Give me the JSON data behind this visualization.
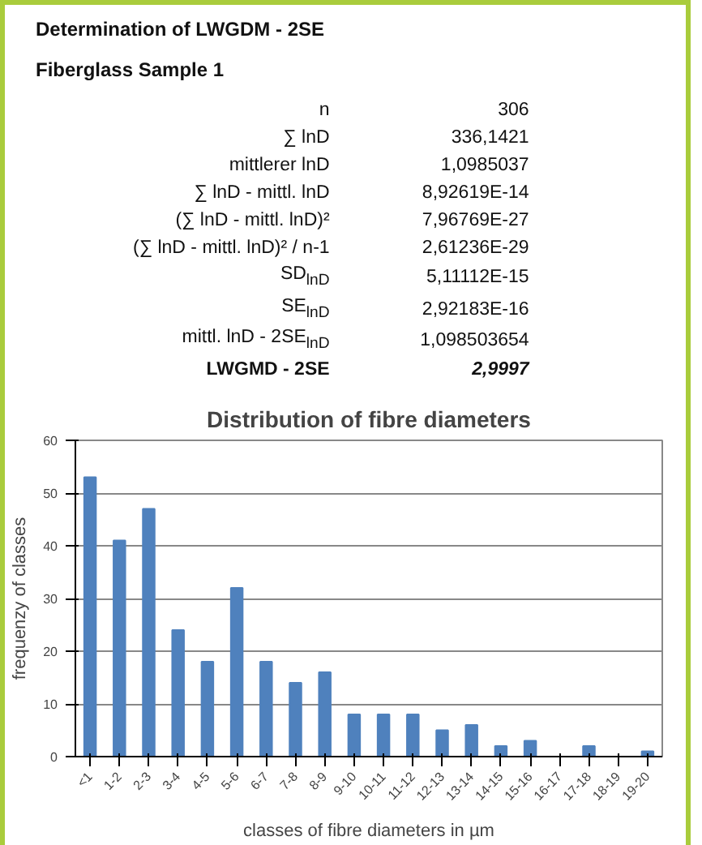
{
  "chart_data": {
    "type": "bar",
    "title": "Distribution of fibre diameters",
    "xlabel": "classes of fibre diameters in µm",
    "ylabel": "frequenzy of classes",
    "categories": [
      "<1",
      "1-2",
      "2-3",
      "3-4",
      "4-5",
      "5-6",
      "6-7",
      "7-8",
      "8-9",
      "9-10",
      "10-11",
      "11-12",
      "12-13",
      "13-14",
      "14-15",
      "15-16",
      "16-17",
      "17-18",
      "18-19",
      "19-20"
    ],
    "values": [
      53,
      41,
      47,
      24,
      18,
      32,
      18,
      14,
      16,
      8,
      8,
      8,
      5,
      6,
      2,
      3,
      0,
      2,
      0,
      1
    ],
    "color": "#4f81bd",
    "ylim": [
      0,
      60
    ],
    "yticks": [
      0,
      10,
      20,
      30,
      40,
      50,
      60
    ],
    "grid": "y",
    "annotations": [
      "Determination of LWGDM - 2SE",
      "Fiberglass Sample 1",
      "n",
      "306",
      "∑ lnD",
      "336,1421",
      "mittlerer lnD",
      "1,0985037",
      "∑ lnD - mittl. lnD",
      "8,92619E-14",
      "(∑ lnD - mittl. lnD)²",
      "7,96769E-27",
      "(∑ lnD - mittl. lnD)² / n-1",
      "2,61236E-29",
      "SD$_{lnD}$",
      "5,11112E-15",
      "SE$_{lnD}$",
      "2,92183E-16",
      "mittl. lnD - 2SE$_{lnD}$",
      "1,098503654",
      "LWGMD - 2SE",
      "2,9997"
    ]
  }
}
